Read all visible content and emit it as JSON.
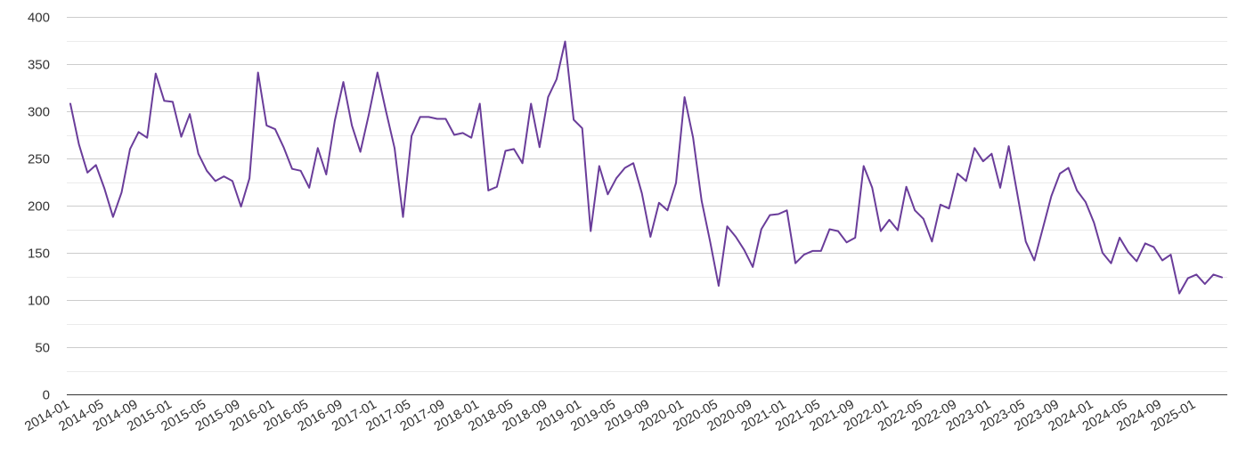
{
  "chart_data": {
    "type": "line",
    "title": "",
    "xlabel": "",
    "ylabel": "",
    "ylim": [
      0,
      400
    ],
    "y_ticks": [
      0,
      50,
      100,
      150,
      200,
      250,
      300,
      350,
      400
    ],
    "grid": true,
    "minor_grid": true,
    "legend": "none",
    "x_tick_labels": [
      "2014-01",
      "2014-05",
      "2014-09",
      "2015-01",
      "2015-05",
      "2015-09",
      "2016-01",
      "2016-05",
      "2016-09",
      "2017-01",
      "2017-05",
      "2017-09",
      "2018-01",
      "2018-05",
      "2018-09",
      "2019-01",
      "2019-05",
      "2019-09",
      "2020-01",
      "2020-05",
      "2020-09",
      "2021-01",
      "2021-05",
      "2021-09",
      "2022-01",
      "2022-05",
      "2022-09",
      "2023-01",
      "2023-05",
      "2023-09",
      "2024-01",
      "2024-05",
      "2024-09",
      "2025-01"
    ],
    "x": [
      "2014-01",
      "2014-02",
      "2014-03",
      "2014-04",
      "2014-05",
      "2014-06",
      "2014-07",
      "2014-08",
      "2014-09",
      "2014-10",
      "2014-11",
      "2014-12",
      "2015-01",
      "2015-02",
      "2015-03",
      "2015-04",
      "2015-05",
      "2015-06",
      "2015-07",
      "2015-08",
      "2015-09",
      "2015-10",
      "2015-11",
      "2015-12",
      "2016-01",
      "2016-02",
      "2016-03",
      "2016-04",
      "2016-05",
      "2016-06",
      "2016-07",
      "2016-08",
      "2016-09",
      "2016-10",
      "2016-11",
      "2016-12",
      "2017-01",
      "2017-02",
      "2017-03",
      "2017-04",
      "2017-05",
      "2017-06",
      "2017-07",
      "2017-08",
      "2017-09",
      "2017-10",
      "2017-11",
      "2017-12",
      "2018-01",
      "2018-02",
      "2018-03",
      "2018-04",
      "2018-05",
      "2018-06",
      "2018-07",
      "2018-08",
      "2018-09",
      "2018-10",
      "2018-11",
      "2018-12",
      "2019-01",
      "2019-02",
      "2019-03",
      "2019-04",
      "2019-05",
      "2019-06",
      "2019-07",
      "2019-08",
      "2019-09",
      "2019-10",
      "2019-11",
      "2019-12",
      "2020-01",
      "2020-02",
      "2020-03",
      "2020-04",
      "2020-05",
      "2020-06",
      "2020-07",
      "2020-08",
      "2020-09",
      "2020-10",
      "2020-11",
      "2020-12",
      "2021-01",
      "2021-02",
      "2021-03",
      "2021-04",
      "2021-05",
      "2021-06",
      "2021-07",
      "2021-08",
      "2021-09",
      "2021-10",
      "2021-11",
      "2021-12",
      "2022-01",
      "2022-02",
      "2022-03",
      "2022-04",
      "2022-05",
      "2022-06",
      "2022-07",
      "2022-08",
      "2022-09",
      "2022-10",
      "2022-11",
      "2022-12",
      "2023-01",
      "2023-02",
      "2023-03",
      "2023-04",
      "2023-05",
      "2023-06",
      "2023-07",
      "2023-08",
      "2023-09",
      "2023-10",
      "2023-11",
      "2023-12",
      "2024-01",
      "2024-02",
      "2024-03",
      "2024-04",
      "2024-05",
      "2024-06",
      "2024-07",
      "2024-08",
      "2024-09",
      "2024-10",
      "2024-11",
      "2024-12",
      "2025-01",
      "2025-02",
      "2025-03",
      "2025-04"
    ],
    "series": [
      {
        "color": "#6a3d9a",
        "values": [
          308,
          265,
          235,
          243,
          218,
          188,
          214,
          260,
          278,
          272,
          340,
          311,
          310,
          273,
          297,
          255,
          237,
          226,
          231,
          226,
          199,
          229,
          341,
          285,
          281,
          262,
          239,
          237,
          219,
          261,
          233,
          290,
          331,
          285,
          257,
          297,
          341,
          300,
          261,
          188,
          274,
          294,
          294,
          292,
          292,
          275,
          277,
          272,
          308,
          216,
          220,
          258,
          260,
          245,
          308,
          262,
          315,
          334,
          374,
          291,
          282,
          173,
          242,
          212,
          229,
          240,
          245,
          213,
          167,
          203,
          195,
          224,
          315,
          272,
          205,
          162,
          115,
          178,
          167,
          153,
          135,
          175,
          190,
          191,
          195,
          139,
          148,
          152,
          152,
          175,
          173,
          161,
          166,
          242,
          219,
          173,
          185,
          174,
          220,
          195,
          186,
          162,
          201,
          197,
          234,
          226,
          261,
          247,
          255,
          219,
          263,
          213,
          162,
          142,
          176,
          210,
          234,
          240,
          216,
          204,
          182,
          150,
          139,
          166,
          151,
          141,
          160,
          156,
          142,
          148,
          107,
          123,
          127,
          117,
          127,
          124
        ]
      }
    ]
  }
}
